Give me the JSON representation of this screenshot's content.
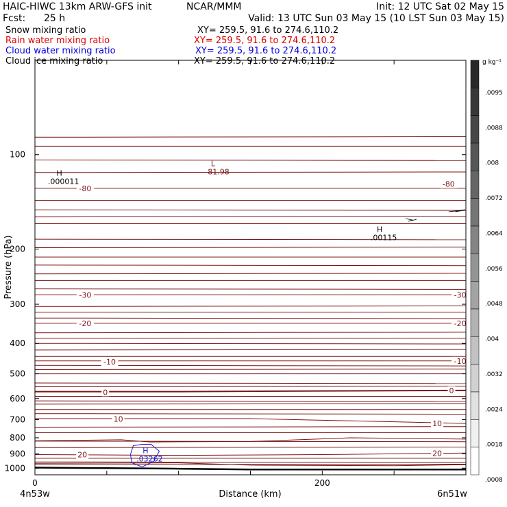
{
  "header": {
    "model": "HAIC-HIWC 13km ARW-GFS init",
    "org": "NCAR/MMM",
    "init": "Init: 12 UTC Sat 02 May 15",
    "fcst_label": "Fcst:",
    "fcst_value": "25 h",
    "valid": "Valid: 13 UTC Sun 03 May 15 (10 LST Sun 03 May 15)"
  },
  "fields": [
    {
      "name": "Snow mixing ratio",
      "xy": "XY= 259.5, 91.6 to 274.6,110.2",
      "color": "#000000"
    },
    {
      "name": "Rain water mixing ratio",
      "xy": "XY= 259.5, 91.6 to 274.6,110.2",
      "color": "#e00000"
    },
    {
      "name": "Cloud water mixing ratio",
      "xy": "XY= 259.5, 91.6 to 274.6,110.2",
      "color": "#0000e0"
    },
    {
      "name": "Cloud ice mixing ratio",
      "xy": "XY= 259.5, 91.6 to 274.6,110.2",
      "color": "#000000"
    }
  ],
  "colorbar": {
    "unit": "g kg⁻¹",
    "labels": [
      ".0095",
      ".0088",
      ".008",
      ".0072",
      ".0064",
      ".0056",
      ".0048",
      ".004",
      ".0032",
      ".0024",
      ".0018",
      ".0008"
    ]
  },
  "chart_data": {
    "type": "line",
    "title": "",
    "xlabel": "Distance (km)",
    "ylabel": "Pressure (hPa)",
    "x_range_km": [
      0,
      300
    ],
    "x_ticks": [
      0,
      200
    ],
    "y_ticks": [
      100,
      200,
      300,
      400,
      500,
      600,
      700,
      800,
      900,
      1000
    ],
    "ylim": [
      1050,
      50
    ],
    "y_scale": "log",
    "x_start_label": "4n53w",
    "x_end_label": "6n51w",
    "isotherm_series": [
      {
        "label": "-80",
        "values": [
          [
            0,
            128
          ],
          [
            300,
            128
          ]
        ]
      },
      {
        "label": "-30",
        "values": [
          [
            0,
            280
          ],
          [
            300,
            280
          ]
        ]
      },
      {
        "label": "-20",
        "values": [
          [
            0,
            345
          ],
          [
            300,
            345
          ]
        ]
      },
      {
        "label": "-10",
        "values": [
          [
            0,
            455
          ],
          [
            300,
            455
          ]
        ]
      },
      {
        "label": "0",
        "values": [
          [
            0,
            570
          ],
          [
            100,
            570
          ],
          [
            200,
            567
          ],
          [
            300,
            565
          ]
        ]
      },
      {
        "label": "10",
        "values": [
          [
            0,
            695
          ],
          [
            150,
            695
          ],
          [
            300,
            720
          ]
        ]
      },
      {
        "label": "20",
        "values": [
          [
            0,
            905
          ],
          [
            100,
            910
          ],
          [
            200,
            905
          ],
          [
            300,
            895
          ]
        ]
      }
    ],
    "labeled_contours": [
      {
        "label": "-80",
        "x_km": 35,
        "p_hPa": 128
      },
      {
        "label": "-80",
        "x_km": 288,
        "p_hPa": 124
      },
      {
        "label": "-30",
        "x_km": 35,
        "p_hPa": 280
      },
      {
        "label": "-30",
        "x_km": 296,
        "p_hPa": 280
      },
      {
        "label": "-20",
        "x_km": 35,
        "p_hPa": 345
      },
      {
        "label": "-20",
        "x_km": 296,
        "p_hPa": 345
      },
      {
        "label": "-10",
        "x_km": 52,
        "p_hPa": 458
      },
      {
        "label": "-10",
        "x_km": 296,
        "p_hPa": 455
      },
      {
        "label": "0",
        "x_km": 49,
        "p_hPa": 572
      },
      {
        "label": "0",
        "x_km": 290,
        "p_hPa": 565
      },
      {
        "label": "10",
        "x_km": 58,
        "p_hPa": 697
      },
      {
        "label": "10",
        "x_km": 280,
        "p_hPa": 720
      },
      {
        "label": "20",
        "x_km": 33,
        "p_hPa": 905
      },
      {
        "label": "20",
        "x_km": 280,
        "p_hPa": 895
      }
    ],
    "extrema": [
      {
        "type": "H",
        "value": ".000011",
        "x_km": 17,
        "p_hPa": 118,
        "color": "#000000"
      },
      {
        "type": "L",
        "value": "-81.98",
        "x_km": 124,
        "p_hPa": 110,
        "color": "#7a1515"
      },
      {
        "type": "H",
        "value": ".00115",
        "x_km": 240,
        "p_hPa": 178,
        "color": "#000000"
      },
      {
        "type": "H",
        "value": ".03262",
        "x_km": 77,
        "p_hPa": 905,
        "color": "#1a1acc"
      }
    ],
    "terrain_p_hPa": [
      [
        0,
        996
      ],
      [
        50,
        1000
      ],
      [
        100,
        1004
      ],
      [
        150,
        1010
      ],
      [
        200,
        1010
      ],
      [
        250,
        1010
      ],
      [
        300,
        1010
      ]
    ]
  }
}
